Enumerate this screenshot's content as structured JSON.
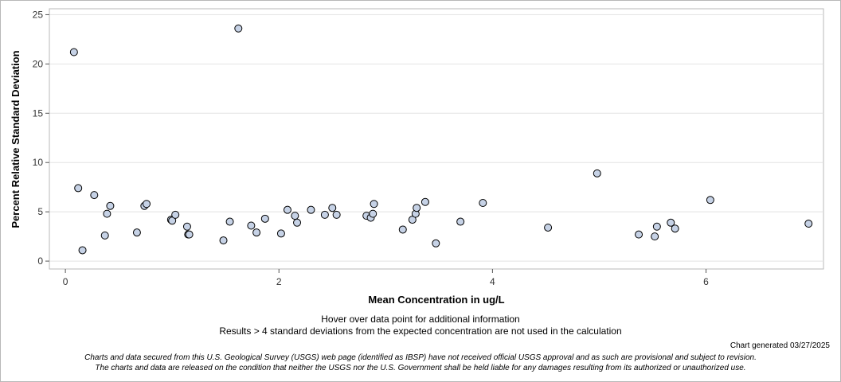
{
  "chart_data": {
    "type": "scatter",
    "xlabel": "Mean Concentration in ug/L",
    "ylabel": "Percent Relative Standard Deviation",
    "xlim": [
      -0.15,
      7.1
    ],
    "ylim": [
      -0.8,
      25.6
    ],
    "xticks": [
      0,
      2,
      4,
      6
    ],
    "yticks": [
      0,
      5,
      10,
      15,
      20,
      25
    ],
    "grid": true,
    "x": [
      0.08,
      0.12,
      0.16,
      0.27,
      0.37,
      0.39,
      0.42,
      0.67,
      0.74,
      0.76,
      0.99,
      1.0,
      1.03,
      1.14,
      1.15,
      1.16,
      1.48,
      1.54,
      1.62,
      1.74,
      1.79,
      1.87,
      2.02,
      2.08,
      2.15,
      2.17,
      2.3,
      2.43,
      2.5,
      2.54,
      2.82,
      2.86,
      2.88,
      2.89,
      3.16,
      3.25,
      3.28,
      3.29,
      3.37,
      3.47,
      3.7,
      3.91,
      4.52,
      4.98,
      5.37,
      5.52,
      5.54,
      5.67,
      5.71,
      6.04,
      6.96
    ],
    "y": [
      21.2,
      7.4,
      1.1,
      6.7,
      2.6,
      4.8,
      5.6,
      2.9,
      5.6,
      5.8,
      4.2,
      4.1,
      4.7,
      3.5,
      2.7,
      2.7,
      2.1,
      4.0,
      23.6,
      3.6,
      2.9,
      4.3,
      2.8,
      5.2,
      4.6,
      3.9,
      5.2,
      4.7,
      5.4,
      4.7,
      4.6,
      4.4,
      4.8,
      5.8,
      3.2,
      4.2,
      4.8,
      5.4,
      6.0,
      1.8,
      4.0,
      5.9,
      3.4,
      8.9,
      2.7,
      2.5,
      3.5,
      3.9,
      3.3,
      6.2,
      3.8
    ],
    "marker_color": "#c6d2e6",
    "marker_edge_color": "#000000"
  },
  "notes": {
    "hover": "Hover over data point for additional information",
    "results": "Results > 4 standard deviations from the expected concentration are not used in the calculation"
  },
  "generated": "Chart generated 03/27/2025",
  "disclaimer": {
    "line1": "Charts and data secured from this U.S. Geological Survey (USGS) web page (identified as IBSP) have not received official USGS approval and as such are provisional and subject to revision.",
    "line2": "The charts and data are released on the condition that neither the USGS nor the U.S. Government shall be held liable for any damages resulting from its authorized or unauthorized use."
  }
}
